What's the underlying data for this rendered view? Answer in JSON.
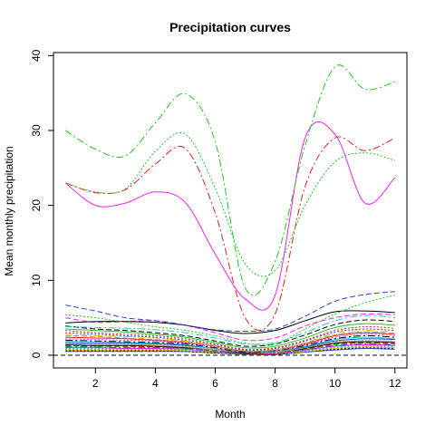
{
  "chart_data": {
    "type": "line",
    "title": "Precipitation curves",
    "xlabel": "Month",
    "ylabel": "Mean monthly precipitation",
    "xlim": [
      0.6,
      12.4
    ],
    "ylim": [
      -1.7,
      40.4
    ],
    "x_ticks": [
      2,
      4,
      6,
      8,
      10,
      12
    ],
    "y_ticks": [
      0,
      10,
      20,
      30,
      40
    ],
    "x": [
      1,
      2,
      3,
      4,
      5,
      6,
      7,
      8,
      9,
      10,
      11,
      12
    ],
    "reference_line": 0,
    "grid": false,
    "legend": "none",
    "series": [
      {
        "color": "#22c522",
        "dash": "8,3,2,3",
        "values": [
          30.0,
          27.5,
          26.6,
          31.0,
          34.9,
          28.5,
          9.0,
          12.5,
          28.0,
          38.5,
          35.5,
          36.5
        ]
      },
      {
        "color": "#22c522",
        "dash": "2,2",
        "values": [
          23.0,
          21.8,
          22.2,
          27.2,
          29.5,
          22.3,
          12.2,
          11.3,
          20.0,
          25.8,
          27.0,
          26.0
        ]
      },
      {
        "color": "#e02020",
        "dash": "8,3,2,3",
        "values": [
          23.0,
          21.7,
          22.1,
          25.5,
          27.6,
          19.0,
          5.0,
          5.5,
          22.5,
          29.0,
          27.3,
          29.0
        ]
      },
      {
        "color": "#ee22ee",
        "dash": "",
        "values": [
          23.0,
          20.0,
          20.3,
          21.8,
          20.4,
          13.5,
          7.5,
          8.0,
          29.0,
          29.5,
          20.3,
          23.7
        ]
      },
      {
        "color": "#2244dd",
        "dash": "6,3",
        "values": [
          6.7,
          5.9,
          5.0,
          4.6,
          4.0,
          3.4,
          3.2,
          3.5,
          5.2,
          7.2,
          8.1,
          8.5
        ]
      },
      {
        "color": "#22c522",
        "dash": "2,2",
        "values": [
          5.4,
          5.0,
          4.4,
          3.8,
          3.3,
          2.6,
          1.6,
          1.5,
          3.5,
          5.5,
          7.0,
          8.0
        ]
      },
      {
        "color": "#000000",
        "dash": "",
        "values": [
          4.3,
          4.5,
          4.5,
          4.4,
          4.0,
          3.3,
          2.9,
          3.3,
          4.6,
          5.8,
          5.9,
          5.7
        ]
      },
      {
        "color": "#ee22ee",
        "dash": "6,3",
        "values": [
          5.0,
          4.4,
          4.5,
          4.6,
          4.0,
          3.0,
          2.0,
          2.3,
          3.9,
          5.0,
          5.5,
          5.4
        ]
      },
      {
        "color": "#22c8c8",
        "dash": "8,3,2,3",
        "values": [
          3.8,
          3.7,
          3.6,
          3.4,
          3.0,
          2.3,
          1.5,
          1.7,
          3.0,
          4.6,
          5.3,
          5.0
        ]
      },
      {
        "color": "#000000",
        "dash": "6,3",
        "values": [
          3.9,
          3.5,
          3.3,
          3.0,
          2.6,
          1.9,
          1.2,
          1.5,
          2.7,
          4.1,
          4.7,
          4.5
        ]
      },
      {
        "color": "#22c522",
        "dash": "",
        "values": [
          3.5,
          3.3,
          3.1,
          2.8,
          2.4,
          1.7,
          1.0,
          1.2,
          2.3,
          3.7,
          4.2,
          4.0
        ]
      },
      {
        "color": "#e02020",
        "dash": "2,2",
        "values": [
          3.3,
          3.0,
          2.8,
          2.6,
          2.2,
          1.5,
          0.8,
          1.0,
          2.0,
          3.3,
          3.8,
          3.6
        ]
      },
      {
        "color": "#2244dd",
        "dash": "2,2",
        "values": [
          3.0,
          2.8,
          2.6,
          2.4,
          2.0,
          1.4,
          0.7,
          0.9,
          1.9,
          3.1,
          3.5,
          3.3
        ]
      },
      {
        "color": "#e8c000",
        "dash": "8,3,2,3",
        "values": [
          2.8,
          2.6,
          2.5,
          2.3,
          1.9,
          1.3,
          0.6,
          0.8,
          1.7,
          2.9,
          3.3,
          3.1
        ]
      },
      {
        "color": "#9a9a9a",
        "dash": "6,3",
        "values": [
          2.6,
          2.5,
          2.3,
          2.1,
          1.8,
          1.2,
          0.6,
          0.7,
          1.6,
          2.7,
          3.1,
          2.9
        ]
      },
      {
        "color": "#e02020",
        "dash": "",
        "values": [
          2.4,
          2.3,
          2.2,
          2.0,
          1.7,
          1.2,
          0.5,
          0.7,
          1.5,
          2.6,
          3.0,
          2.8
        ]
      },
      {
        "color": "#ee22ee",
        "dash": "2,2",
        "values": [
          2.2,
          2.1,
          2.0,
          1.9,
          1.6,
          1.1,
          0.5,
          0.6,
          1.4,
          2.4,
          2.8,
          2.6
        ]
      },
      {
        "color": "#000000",
        "dash": "8,3,2,3",
        "values": [
          2.0,
          1.9,
          1.8,
          1.7,
          1.5,
          1.0,
          0.4,
          0.6,
          1.3,
          2.2,
          2.6,
          2.4
        ]
      },
      {
        "color": "#22c8c8",
        "dash": "",
        "values": [
          1.9,
          1.8,
          1.7,
          1.6,
          1.4,
          0.9,
          0.4,
          0.5,
          1.2,
          2.1,
          2.4,
          2.2
        ]
      },
      {
        "color": "#2244dd",
        "dash": "",
        "values": [
          1.7,
          1.6,
          1.6,
          1.5,
          1.3,
          0.9,
          0.3,
          0.5,
          1.1,
          1.9,
          2.2,
          2.1
        ]
      },
      {
        "color": "#e8c000",
        "dash": "2,2",
        "values": [
          1.6,
          1.5,
          1.5,
          1.4,
          1.2,
          0.8,
          0.3,
          0.4,
          1.0,
          1.8,
          2.0,
          1.9
        ]
      },
      {
        "color": "#9a9a9a",
        "dash": "",
        "values": [
          1.5,
          1.4,
          1.4,
          1.3,
          1.1,
          0.7,
          0.3,
          0.4,
          1.0,
          1.7,
          1.9,
          1.8
        ]
      },
      {
        "color": "#000000",
        "dash": "",
        "values": [
          1.4,
          1.3,
          1.3,
          1.2,
          1.0,
          0.7,
          0.2,
          0.4,
          0.9,
          1.6,
          1.8,
          1.7
        ]
      },
      {
        "color": "#e02020",
        "dash": "6,3",
        "values": [
          1.3,
          1.3,
          1.2,
          1.1,
          1.0,
          0.6,
          0.2,
          0.3,
          0.8,
          1.5,
          1.7,
          1.6
        ]
      },
      {
        "color": "#22c522",
        "dash": "6,3",
        "values": [
          1.2,
          1.2,
          1.1,
          1.1,
          0.9,
          0.6,
          0.2,
          0.3,
          0.8,
          1.4,
          1.6,
          1.5
        ]
      },
      {
        "color": "#2244dd",
        "dash": "8,3,2,3",
        "values": [
          1.1,
          1.1,
          1.0,
          1.0,
          0.9,
          0.5,
          0.2,
          0.3,
          0.7,
          1.3,
          1.5,
          1.4
        ]
      },
      {
        "color": "#ee22ee",
        "dash": "",
        "values": [
          1.0,
          1.0,
          0.9,
          0.9,
          0.8,
          0.5,
          0.2,
          0.2,
          0.7,
          1.2,
          1.4,
          1.3
        ]
      },
      {
        "color": "#22c8c8",
        "dash": "2,2",
        "values": [
          0.9,
          0.9,
          0.9,
          0.8,
          0.7,
          0.5,
          0.1,
          0.2,
          0.6,
          1.1,
          1.3,
          1.2
        ]
      },
      {
        "color": "#9a9a9a",
        "dash": "2,2",
        "values": [
          0.8,
          0.8,
          0.8,
          0.8,
          0.7,
          0.4,
          0.1,
          0.2,
          0.6,
          1.0,
          1.2,
          1.1
        ]
      },
      {
        "color": "#e8c000",
        "dash": "",
        "values": [
          0.7,
          0.7,
          0.7,
          0.7,
          0.6,
          0.4,
          0.1,
          0.2,
          0.5,
          0.9,
          1.1,
          1.0
        ]
      },
      {
        "color": "#000000",
        "dash": "2,2",
        "values": [
          0.6,
          0.6,
          0.6,
          0.6,
          0.5,
          0.3,
          0.1,
          0.1,
          0.5,
          0.8,
          1.0,
          0.9
        ]
      },
      {
        "color": "#2244dd",
        "dash": "",
        "values": [
          0.5,
          0.5,
          0.5,
          0.5,
          0.5,
          0.3,
          0.1,
          0.1,
          0.4,
          0.7,
          0.9,
          0.8
        ]
      }
    ]
  }
}
